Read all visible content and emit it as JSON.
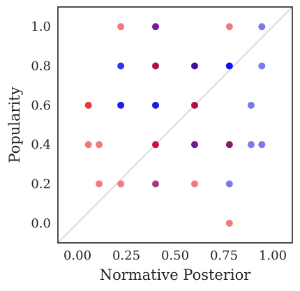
{
  "chart_data": {
    "type": "scatter",
    "title": "",
    "xlabel": "Normative Posterior",
    "ylabel": "Popularity",
    "xlim": [
      -0.1,
      1.1
    ],
    "ylim": [
      -0.1,
      1.1
    ],
    "xticks": [
      0.0,
      0.25,
      0.5,
      0.75,
      1.0
    ],
    "xtick_labels": [
      "0.00",
      "0.25",
      "0.50",
      "0.75",
      "1.00"
    ],
    "yticks": [
      0.0,
      0.2,
      0.4,
      0.6,
      0.8,
      1.0
    ],
    "ytick_labels": [
      "0.0",
      "0.2",
      "0.4",
      "0.6",
      "0.8",
      "1.0"
    ],
    "grid": false,
    "legend": "none",
    "reference_line": {
      "from": [
        -0.1,
        -0.1
      ],
      "to": [
        1.1,
        1.1
      ],
      "color": "#dddddd"
    },
    "points": [
      {
        "x": 0.222,
        "y": 1.0,
        "color": "#f07a7a"
      },
      {
        "x": 0.4,
        "y": 1.0,
        "color": "#7a1a9a"
      },
      {
        "x": 0.778,
        "y": 1.0,
        "color": "#f07a7a"
      },
      {
        "x": 0.944,
        "y": 1.0,
        "color": "#7a7aee"
      },
      {
        "x": 0.222,
        "y": 0.8,
        "color": "#3535e8"
      },
      {
        "x": 0.4,
        "y": 0.8,
        "color": "#b0103e"
      },
      {
        "x": 0.6,
        "y": 0.8,
        "color": "#4a0aa8"
      },
      {
        "x": 0.778,
        "y": 0.8,
        "color": "#1010f0"
      },
      {
        "x": 0.944,
        "y": 0.8,
        "color": "#7a7aee"
      },
      {
        "x": 0.056,
        "y": 0.6,
        "color": "#e83838"
      },
      {
        "x": 0.222,
        "y": 0.6,
        "color": "#1c1ce8"
      },
      {
        "x": 0.4,
        "y": 0.6,
        "color": "#1c1ce8"
      },
      {
        "x": 0.6,
        "y": 0.6,
        "color": "#b0103e"
      },
      {
        "x": 0.889,
        "y": 0.6,
        "color": "#7a7aee"
      },
      {
        "x": 0.056,
        "y": 0.4,
        "color": "#f07a7a"
      },
      {
        "x": 0.111,
        "y": 0.4,
        "color": "#f07a7a"
      },
      {
        "x": 0.4,
        "y": 0.4,
        "color": "#c8143a"
      },
      {
        "x": 0.6,
        "y": 0.4,
        "color": "#6a1a9a"
      },
      {
        "x": 0.778,
        "y": 0.4,
        "color": "#8a1a6a"
      },
      {
        "x": 0.889,
        "y": 0.4,
        "color": "#7a7aee"
      },
      {
        "x": 0.944,
        "y": 0.4,
        "color": "#7a7aee"
      },
      {
        "x": 0.111,
        "y": 0.2,
        "color": "#f07a7a"
      },
      {
        "x": 0.222,
        "y": 0.2,
        "color": "#f07a7a"
      },
      {
        "x": 0.4,
        "y": 0.2,
        "color": "#a83a7a"
      },
      {
        "x": 0.6,
        "y": 0.2,
        "color": "#f07a7a"
      },
      {
        "x": 0.778,
        "y": 0.2,
        "color": "#7a7aee"
      },
      {
        "x": 0.778,
        "y": 0.0,
        "color": "#f07a7a"
      }
    ]
  }
}
